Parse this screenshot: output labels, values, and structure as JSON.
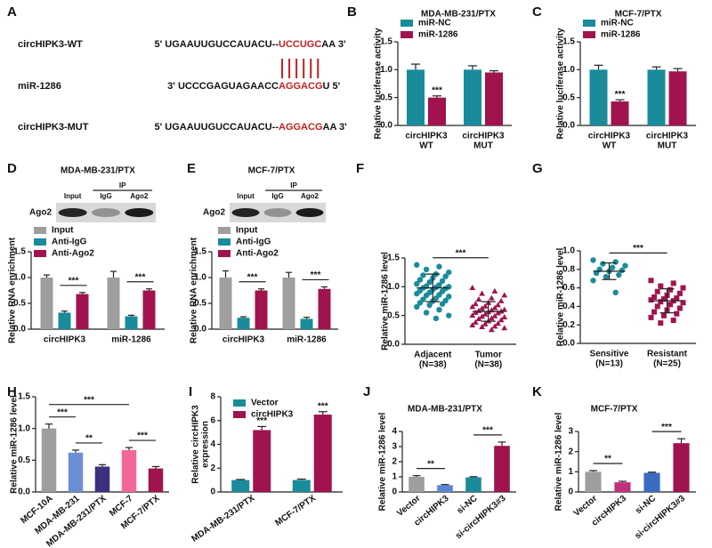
{
  "sequence_panel": {
    "panel": "A",
    "rows": [
      {
        "name": "circHIPK3-WT",
        "prefix": "5' UGAAUUGUCCAUACU--",
        "core": "UCCUGC",
        "suffix": "AA 3'"
      },
      {
        "name": "miR-1286",
        "prefix": "3' UCCCGAGUAGAACC",
        "core": "AGGACG",
        "suffix": "U 5'"
      },
      {
        "name": "circHIPK3-MUT",
        "prefix": "5' UGAAUUGUCCAUACU--",
        "core": "AGGACG",
        "suffix": "AA 3'"
      }
    ]
  },
  "chart_data": [
    {
      "panel": "B",
      "type": "bar",
      "title": "MDA-MB-231/PTX",
      "ylabel": "Relative luciferase activity",
      "categories": [
        [
          "circHIPK3",
          "WT"
        ],
        [
          "circHIPK3",
          "MUT"
        ]
      ],
      "series": [
        {
          "name": "miR-NC",
          "color": "#1a8b9b",
          "values": [
            1.0,
            1.0
          ],
          "errors": [
            0.1,
            0.07
          ]
        },
        {
          "name": "miR-1286",
          "color": "#a0134f",
          "values": [
            0.5,
            0.95
          ],
          "errors": [
            0.03,
            0.03
          ],
          "annotations": [
            "***",
            null
          ]
        }
      ],
      "ylim": [
        0,
        1.5
      ],
      "yticks": [
        {
          "value": 0,
          "label": "0.0"
        },
        {
          "value": 0.5,
          "label": "0.5"
        },
        {
          "value": 1,
          "label": "1.0"
        },
        {
          "value": 1.5,
          "label": "1.5"
        }
      ]
    },
    {
      "panel": "C",
      "type": "bar",
      "title": "MCF-7/PTX",
      "ylabel": "Relative luciferase activity",
      "categories": [
        [
          "circHIPK3",
          "WT"
        ],
        [
          "circHIPK3",
          "MUT"
        ]
      ],
      "series": [
        {
          "name": "miR-NC",
          "color": "#1a8b9b",
          "values": [
            1.0,
            1.0
          ],
          "errors": [
            0.08,
            0.05
          ]
        },
        {
          "name": "miR-1286",
          "color": "#a0134f",
          "values": [
            0.43,
            0.97
          ],
          "errors": [
            0.03,
            0.05
          ],
          "annotations": [
            "***",
            null
          ]
        }
      ],
      "ylim": [
        0,
        1.5
      ],
      "yticks": [
        {
          "value": 0,
          "label": "0.0"
        },
        {
          "value": 0.5,
          "label": "0.5"
        },
        {
          "value": 1,
          "label": "1.0"
        },
        {
          "value": 1.5,
          "label": "1.5"
        }
      ]
    },
    {
      "panel": "D",
      "type": "bar",
      "title": "MDA-MB-231/PTX",
      "blot": {
        "ip": "IP",
        "lanes": [
          "Input",
          "IgG",
          "Ago2"
        ],
        "protein": "Ago2"
      },
      "ylabel": "Relative RNA enrichment",
      "categories": [
        "circHIPK3",
        "miR-1286"
      ],
      "series": [
        {
          "name": "Input",
          "color": "#9e9e9e",
          "values": [
            1.0,
            1.0
          ],
          "errors": [
            0.05,
            0.12
          ]
        },
        {
          "name": "Anti-IgG",
          "color": "#1a8b9b",
          "values": [
            0.32,
            0.25
          ],
          "errors": [
            0.03,
            0.02
          ]
        },
        {
          "name": "Anti-Ago2",
          "color": "#a0134f",
          "values": [
            0.68,
            0.75
          ],
          "errors": [
            0.03,
            0.03
          ]
        }
      ],
      "brackets": [
        {
          "category": 0,
          "series": [
            1,
            2
          ],
          "label": "***"
        },
        {
          "category": 1,
          "series": [
            1,
            2
          ],
          "label": "***"
        }
      ],
      "ylim": [
        0,
        1.5
      ],
      "yticks": [
        {
          "value": 0,
          "label": "0.0"
        },
        {
          "value": 0.5,
          "label": "0.5"
        },
        {
          "value": 1,
          "label": "1.0"
        },
        {
          "value": 1.5,
          "label": "1.5"
        }
      ]
    },
    {
      "panel": "E",
      "type": "bar",
      "title": "MCF-7/PTX",
      "blot": {
        "ip": "IP",
        "lanes": [
          "Input",
          "IgG",
          "Ago2"
        ],
        "protein": "Ago2"
      },
      "ylabel": "Relative RNA enrichment",
      "categories": [
        "circHIPK3",
        "miR-1286"
      ],
      "series": [
        {
          "name": "Input",
          "color": "#9e9e9e",
          "values": [
            1.0,
            1.0
          ],
          "errors": [
            0.13,
            0.1
          ]
        },
        {
          "name": "Anti-IgG",
          "color": "#1a8b9b",
          "values": [
            0.22,
            0.2
          ],
          "errors": [
            0.02,
            0.03
          ]
        },
        {
          "name": "Anti-Ago2",
          "color": "#a0134f",
          "values": [
            0.75,
            0.78
          ],
          "errors": [
            0.03,
            0.04
          ]
        }
      ],
      "brackets": [
        {
          "category": 0,
          "series": [
            1,
            2
          ],
          "label": "***"
        },
        {
          "category": 1,
          "series": [
            1,
            2
          ],
          "label": "***"
        }
      ],
      "ylim": [
        0,
        1.5
      ],
      "yticks": [
        {
          "value": 0,
          "label": "0.0"
        },
        {
          "value": 0.5,
          "label": "0.5"
        },
        {
          "value": 1,
          "label": "1.0"
        },
        {
          "value": 1.5,
          "label": "1.5"
        }
      ]
    },
    {
      "panel": "F",
      "type": "dotplot",
      "ylabel": "Relative miR-1286 level",
      "categories": [
        [
          "Adjacent",
          "(N=38)"
        ],
        [
          "Tumor",
          "(N=38)"
        ]
      ],
      "values": [
        [
          1.38,
          1.35,
          1.3,
          1.25,
          1.22,
          1.2,
          1.18,
          1.15,
          1.12,
          1.1,
          1.08,
          1.05,
          1.03,
          1.01,
          1.0,
          0.99,
          0.98,
          0.97,
          0.95,
          0.93,
          0.92,
          0.9,
          0.88,
          0.86,
          0.85,
          0.83,
          0.8,
          0.78,
          0.76,
          0.75,
          0.72,
          0.7,
          0.68,
          0.65,
          0.6,
          0.55,
          0.5,
          0.45
        ],
        [
          0.98,
          0.92,
          0.88,
          0.85,
          0.8,
          0.78,
          0.75,
          0.72,
          0.7,
          0.68,
          0.66,
          0.65,
          0.63,
          0.62,
          0.6,
          0.59,
          0.58,
          0.57,
          0.56,
          0.55,
          0.54,
          0.52,
          0.5,
          0.49,
          0.48,
          0.47,
          0.45,
          0.44,
          0.42,
          0.4,
          0.38,
          0.36,
          0.35,
          0.33,
          0.31,
          0.3,
          0.28,
          0.25
        ]
      ],
      "means": [
        0.98,
        0.57
      ],
      "sds": [
        0.24,
        0.17
      ],
      "colors": [
        "#1a8b9b",
        "#a0134f"
      ],
      "markers": [
        "circle",
        "triangle"
      ],
      "brackets": [
        {
          "groups": [
            0,
            1
          ],
          "label": "***"
        }
      ],
      "ylim": [
        0,
        1.5
      ],
      "yticks": [
        {
          "value": 0,
          "label": "0.0"
        },
        {
          "value": 0.5,
          "label": "0.5"
        },
        {
          "value": 1,
          "label": "1.0"
        },
        {
          "value": 1.5,
          "label": "1.5"
        }
      ]
    },
    {
      "panel": "G",
      "type": "dotplot",
      "ylabel": "Relative miR-1286 level",
      "categories": [
        [
          "Sensitive",
          "(N=13)"
        ],
        [
          "Resistant",
          "(N=25)"
        ]
      ],
      "values": [
        [
          0.9,
          0.88,
          0.86,
          0.84,
          0.82,
          0.8,
          0.79,
          0.78,
          0.76,
          0.74,
          0.72,
          0.68,
          0.55
        ],
        [
          0.68,
          0.65,
          0.62,
          0.6,
          0.58,
          0.56,
          0.54,
          0.52,
          0.5,
          0.49,
          0.48,
          0.47,
          0.46,
          0.45,
          0.44,
          0.42,
          0.4,
          0.38,
          0.36,
          0.34,
          0.32,
          0.3,
          0.28,
          0.25,
          0.22
        ]
      ],
      "means": [
        0.78,
        0.46
      ],
      "sds": [
        0.09,
        0.13
      ],
      "colors": [
        "#1a8b9b",
        "#a0134f"
      ],
      "markers": [
        "circle",
        "square"
      ],
      "brackets": [
        {
          "groups": [
            0,
            1
          ],
          "label": "***"
        }
      ],
      "ylim": [
        0,
        1.0
      ],
      "yticks": [
        {
          "value": 0,
          "label": "0.0"
        },
        {
          "value": 0.2,
          "label": "0.2"
        },
        {
          "value": 0.4,
          "label": "0.4"
        },
        {
          "value": 0.6,
          "label": "0.6"
        },
        {
          "value": 0.8,
          "label": "0.8"
        },
        {
          "value": 1,
          "label": "1.0"
        }
      ]
    },
    {
      "panel": "H",
      "type": "bar",
      "ylabel": "Relative miR-1286 level",
      "categories": [
        "MCF-10A",
        "MDA-MB-231",
        "MDA-MB-231/PTX",
        "MCF-7",
        "MCF-7/PTX"
      ],
      "values": [
        1.0,
        0.62,
        0.4,
        0.66,
        0.37
      ],
      "errors": [
        0.07,
        0.04,
        0.03,
        0.04,
        0.03
      ],
      "colors": [
        "#9e9e9e",
        "#6b8fd6",
        "#3b2f80",
        "#f2679a",
        "#a0134f"
      ],
      "brackets": [
        {
          "bars": [
            0,
            1
          ],
          "label": "***"
        },
        {
          "bars": [
            0,
            3
          ],
          "label": "***"
        },
        {
          "bars": [
            1,
            2
          ],
          "label": "**"
        },
        {
          "bars": [
            3,
            4
          ],
          "label": "***"
        }
      ],
      "ylim": [
        0,
        1.5
      ],
      "yticks": [
        {
          "value": 0,
          "label": "0.0"
        },
        {
          "value": 0.5,
          "label": "0.5"
        },
        {
          "value": 1,
          "label": "1.0"
        },
        {
          "value": 1.5,
          "label": "1.5"
        }
      ]
    },
    {
      "panel": "I",
      "type": "bar",
      "ylabel": [
        "Relative circHIPK3",
        "expression"
      ],
      "categories": [
        "MDA-MB-231/PTX",
        "MCF-7/PTX"
      ],
      "series": [
        {
          "name": "Vector",
          "color": "#1a8b9b",
          "values": [
            1.0,
            1.0
          ],
          "errors": [
            0.05,
            0.08
          ]
        },
        {
          "name": "circHIPK3",
          "color": "#a0134f",
          "values": [
            5.2,
            6.5
          ],
          "errors": [
            0.3,
            0.25
          ],
          "annotations": [
            "***",
            "***"
          ]
        }
      ],
      "ylim": [
        0,
        8
      ],
      "yticks": [
        0,
        2,
        4,
        6,
        8
      ]
    },
    {
      "panel": "J",
      "type": "bar",
      "title": "MDA-MB-231/PTX",
      "ylabel": "Relative miR-1286 level",
      "categories": [
        "Vector",
        "circHIPK3",
        "si-NC",
        "si-circHIPK3#3"
      ],
      "values": [
        1.0,
        0.45,
        0.97,
        3.05
      ],
      "errors": [
        0.08,
        0.04,
        0.04,
        0.25
      ],
      "colors": [
        "#9e9e9e",
        "#5b86d6",
        "#1a8b9b",
        "#a0134f"
      ],
      "brackets": [
        {
          "bars": [
            0,
            1
          ],
          "label": "**"
        },
        {
          "bars": [
            2,
            3
          ],
          "label": "***"
        }
      ],
      "ylim": [
        0,
        4
      ],
      "yticks": [
        0,
        1,
        2,
        3,
        4
      ]
    },
    {
      "panel": "K",
      "type": "bar",
      "title": "MCF-7/PTX",
      "ylabel": "Relative miR-1286 level",
      "categories": [
        "Vector",
        "circHIPK3",
        "si-NC",
        "si-circHIPK3#3"
      ],
      "values": [
        1.0,
        0.48,
        0.95,
        2.42
      ],
      "errors": [
        0.06,
        0.05,
        0.03,
        0.22
      ],
      "colors": [
        "#9e9e9e",
        "#c2307a",
        "#3a6cc0",
        "#a0134f"
      ],
      "brackets": [
        {
          "bars": [
            0,
            1
          ],
          "label": "**"
        },
        {
          "bars": [
            2,
            3
          ],
          "label": "***"
        }
      ],
      "ylim": [
        0,
        3
      ],
      "yticks": [
        0,
        1,
        2,
        3
      ]
    }
  ]
}
